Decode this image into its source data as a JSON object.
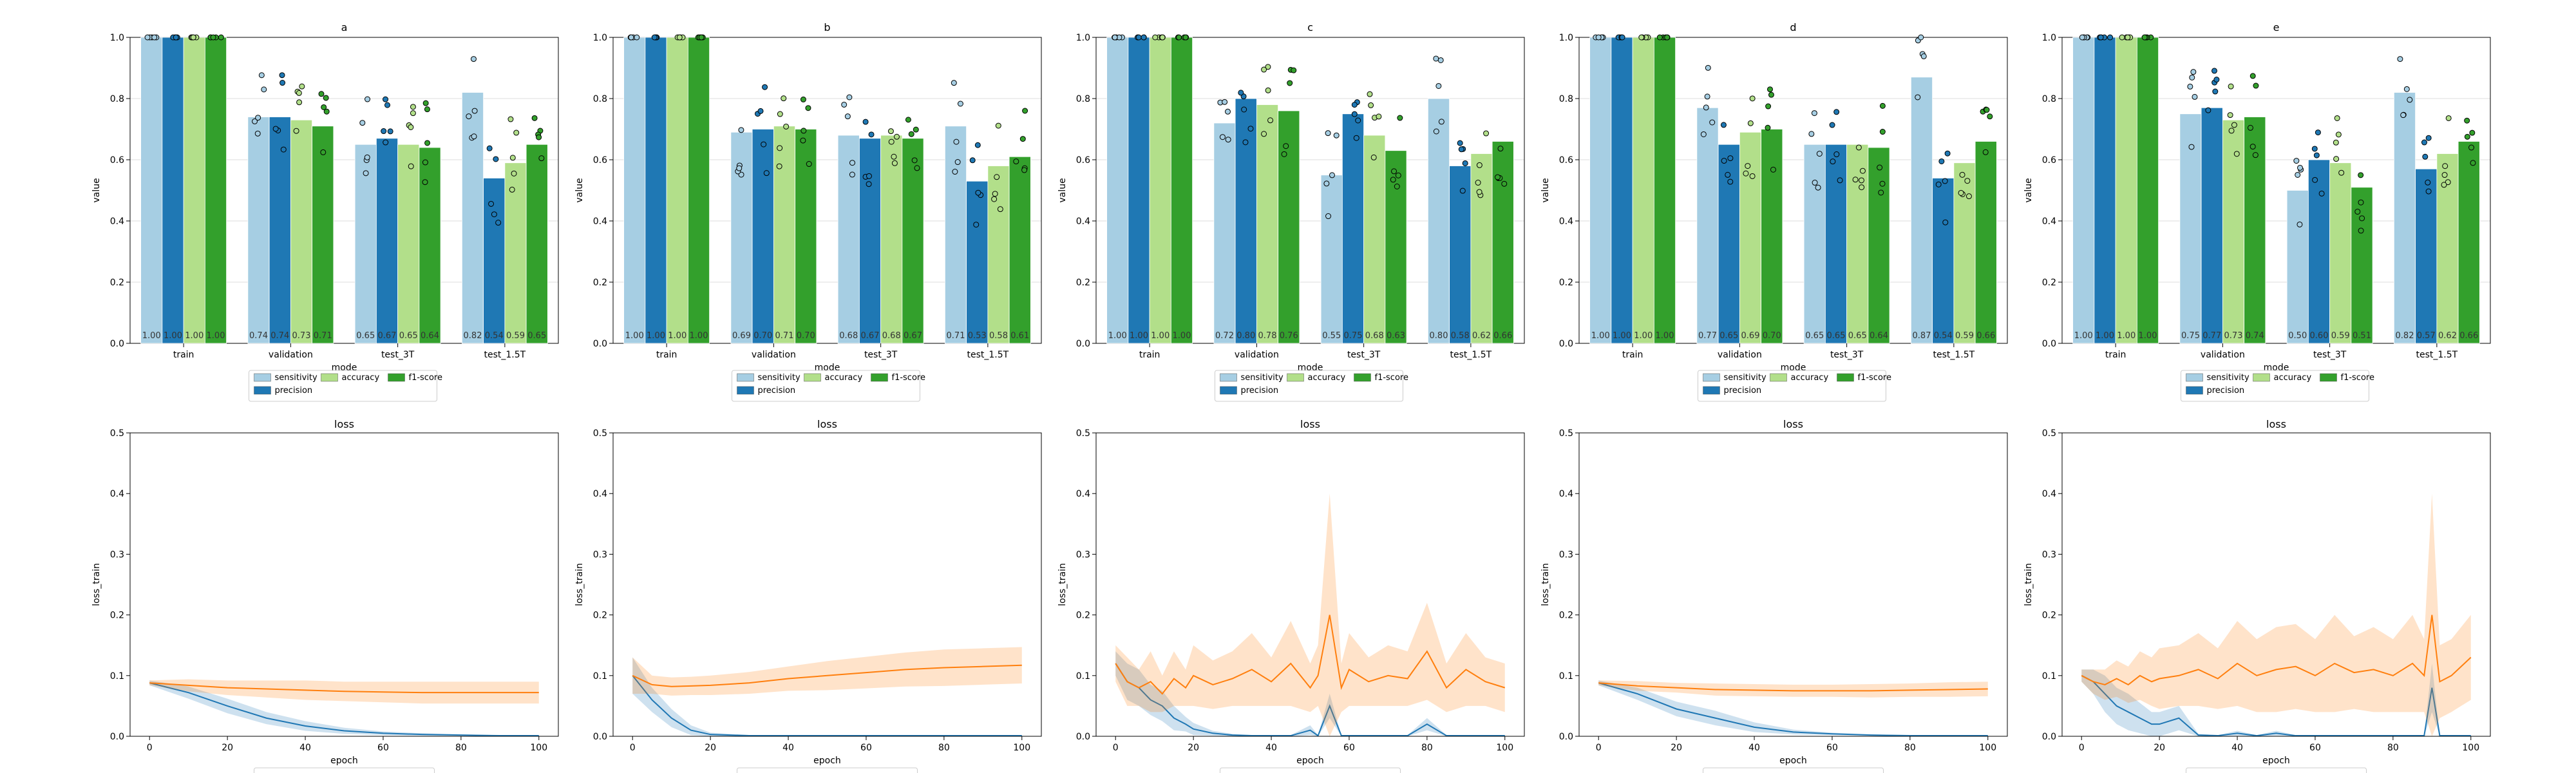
{
  "chart_data": [
    {
      "panel": "a",
      "type": "bar",
      "title": "a",
      "xlabel": "mode",
      "ylabel": "value",
      "ylim": [
        0,
        1.0
      ],
      "y_ticks": [
        "0.0",
        "0.2",
        "0.4",
        "0.6",
        "0.8",
        "1.0"
      ],
      "categories": [
        "train",
        "validation",
        "test_3T",
        "test_1.5T"
      ],
      "legend": [
        "sensitivity",
        "accuracy",
        "f1-score",
        "precision"
      ],
      "series": [
        {
          "name": "sensitivity",
          "values": [
            1.0,
            0.74,
            0.65,
            0.82
          ],
          "labels": [
            "1.00",
            "0.74",
            "0.65",
            "0.82"
          ]
        },
        {
          "name": "precision",
          "values": [
            1.0,
            0.74,
            0.67,
            0.54
          ],
          "labels": [
            "1.00",
            "0.74",
            "0.67",
            "0.54"
          ]
        },
        {
          "name": "accuracy",
          "values": [
            1.0,
            0.73,
            0.65,
            0.59
          ],
          "labels": [
            "1.00",
            "0.73",
            "0.65",
            "0.59"
          ]
        },
        {
          "name": "f1-score",
          "values": [
            1.0,
            0.71,
            0.64,
            0.65
          ],
          "labels": [
            "1.00",
            "0.71",
            "0.64",
            "0.65"
          ]
        }
      ]
    },
    {
      "panel": "b",
      "type": "bar",
      "title": "b",
      "xlabel": "mode",
      "ylabel": "value",
      "ylim": [
        0,
        1.0
      ],
      "y_ticks": [
        "0.0",
        "0.2",
        "0.4",
        "0.6",
        "0.8",
        "1.0"
      ],
      "categories": [
        "train",
        "validation",
        "test_3T",
        "test_1.5T"
      ],
      "legend": [
        "sensitivity",
        "accuracy",
        "f1-score",
        "precision"
      ],
      "series": [
        {
          "name": "sensitivity",
          "values": [
            1.0,
            0.69,
            0.68,
            0.71
          ],
          "labels": [
            "1.00",
            "0.69",
            "0.68",
            "0.71"
          ]
        },
        {
          "name": "precision",
          "values": [
            1.0,
            0.7,
            0.67,
            0.53
          ],
          "labels": [
            "1.00",
            "0.70",
            "0.67",
            "0.53"
          ]
        },
        {
          "name": "accuracy",
          "values": [
            1.0,
            0.71,
            0.68,
            0.58
          ],
          "labels": [
            "1.00",
            "0.71",
            "0.68",
            "0.58"
          ]
        },
        {
          "name": "f1-score",
          "values": [
            1.0,
            0.7,
            0.67,
            0.61
          ],
          "labels": [
            "1.00",
            "0.70",
            "0.67",
            "0.61"
          ]
        }
      ]
    },
    {
      "panel": "c",
      "type": "bar",
      "title": "c",
      "xlabel": "mode",
      "ylabel": "value",
      "ylim": [
        0,
        1.0
      ],
      "y_ticks": [
        "0.0",
        "0.2",
        "0.4",
        "0.6",
        "0.8",
        "1.0"
      ],
      "categories": [
        "train",
        "validation",
        "test_3T",
        "test_1.5T"
      ],
      "legend": [
        "sensitivity",
        "accuracy",
        "f1-score",
        "precision"
      ],
      "series": [
        {
          "name": "sensitivity",
          "values": [
            1.0,
            0.72,
            0.55,
            0.8
          ],
          "labels": [
            "1.00",
            "0.72",
            "0.55",
            "0.80"
          ]
        },
        {
          "name": "precision",
          "values": [
            1.0,
            0.8,
            0.75,
            0.58
          ],
          "labels": [
            "1.00",
            "0.80",
            "0.75",
            "0.58"
          ]
        },
        {
          "name": "accuracy",
          "values": [
            1.0,
            0.78,
            0.68,
            0.62
          ],
          "labels": [
            "1.00",
            "0.78",
            "0.68",
            "0.62"
          ]
        },
        {
          "name": "f1-score",
          "values": [
            1.0,
            0.76,
            0.63,
            0.66
          ],
          "labels": [
            "1.00",
            "0.76",
            "0.63",
            "0.66"
          ]
        }
      ]
    },
    {
      "panel": "d",
      "type": "bar",
      "title": "d",
      "xlabel": "mode",
      "ylabel": "value",
      "ylim": [
        0,
        1.0
      ],
      "y_ticks": [
        "0.0",
        "0.2",
        "0.4",
        "0.6",
        "0.8",
        "1.0"
      ],
      "categories": [
        "train",
        "validation",
        "test_3T",
        "test_1.5T"
      ],
      "legend": [
        "sensitivity",
        "accuracy",
        "f1-score",
        "precision"
      ],
      "series": [
        {
          "name": "sensitivity",
          "values": [
            1.0,
            0.77,
            0.65,
            0.87
          ],
          "labels": [
            "1.00",
            "0.77",
            "0.65",
            "0.87"
          ]
        },
        {
          "name": "precision",
          "values": [
            1.0,
            0.65,
            0.65,
            0.54
          ],
          "labels": [
            "1.00",
            "0.65",
            "0.65",
            "0.54"
          ]
        },
        {
          "name": "accuracy",
          "values": [
            1.0,
            0.69,
            0.65,
            0.59
          ],
          "labels": [
            "1.00",
            "0.69",
            "0.65",
            "0.59"
          ]
        },
        {
          "name": "f1-score",
          "values": [
            1.0,
            0.7,
            0.64,
            0.66
          ],
          "labels": [
            "1.00",
            "0.70",
            "0.64",
            "0.66"
          ]
        }
      ]
    },
    {
      "panel": "e",
      "type": "bar",
      "title": "e",
      "xlabel": "mode",
      "ylabel": "value",
      "ylim": [
        0,
        1.0
      ],
      "y_ticks": [
        "0.0",
        "0.2",
        "0.4",
        "0.6",
        "0.8",
        "1.0"
      ],
      "categories": [
        "train",
        "validation",
        "test_3T",
        "test_1.5T"
      ],
      "legend": [
        "sensitivity",
        "accuracy",
        "f1-score",
        "precision"
      ],
      "series": [
        {
          "name": "sensitivity",
          "values": [
            1.0,
            0.75,
            0.5,
            0.82
          ],
          "labels": [
            "1.00",
            "0.75",
            "0.50",
            "0.82"
          ]
        },
        {
          "name": "precision",
          "values": [
            1.0,
            0.77,
            0.6,
            0.57
          ],
          "labels": [
            "1.00",
            "0.77",
            "0.60",
            "0.57"
          ]
        },
        {
          "name": "accuracy",
          "values": [
            1.0,
            0.73,
            0.59,
            0.62
          ],
          "labels": [
            "1.00",
            "0.73",
            "0.59",
            "0.62"
          ]
        },
        {
          "name": "f1-score",
          "values": [
            1.0,
            0.74,
            0.51,
            0.66
          ],
          "labels": [
            "1.00",
            "0.74",
            "0.51",
            "0.66"
          ]
        }
      ]
    },
    {
      "panel": "a-loss",
      "type": "line",
      "title": "loss",
      "xlabel": "epoch",
      "ylabel": "loss_train",
      "xlim": [
        -5,
        105
      ],
      "ylim": [
        0,
        0.5
      ],
      "x_ticks": [
        "0",
        "20",
        "40",
        "60",
        "80",
        "100"
      ],
      "y_ticks": [
        "0.0",
        "0.1",
        "0.2",
        "0.3",
        "0.4",
        "0.5"
      ],
      "x": [
        0,
        10,
        20,
        30,
        40,
        50,
        60,
        70,
        80,
        90,
        100
      ],
      "series": [
        {
          "color": "#1f77b4",
          "values": [
            0.088,
            0.072,
            0.05,
            0.03,
            0.017,
            0.009,
            0.005,
            0.003,
            0.002,
            0.001,
            0.001
          ],
          "band": [
            0.004,
            0.01,
            0.012,
            0.01,
            0.008,
            0.005,
            0.003,
            0.002,
            0.001,
            0.001,
            0.001
          ]
        },
        {
          "color": "#ff7f0e",
          "values": [
            0.088,
            0.084,
            0.08,
            0.078,
            0.076,
            0.074,
            0.073,
            0.072,
            0.072,
            0.072,
            0.072
          ],
          "band": [
            0.004,
            0.01,
            0.012,
            0.014,
            0.016,
            0.016,
            0.017,
            0.018,
            0.018,
            0.018,
            0.018
          ]
        }
      ]
    },
    {
      "panel": "b-loss",
      "type": "line",
      "title": "loss",
      "xlabel": "epoch",
      "ylabel": "loss_train",
      "xlim": [
        -5,
        105
      ],
      "ylim": [
        0,
        0.5
      ],
      "x_ticks": [
        "0",
        "20",
        "40",
        "60",
        "80",
        "100"
      ],
      "y_ticks": [
        "0.0",
        "0.1",
        "0.2",
        "0.3",
        "0.4",
        "0.5"
      ],
      "x": [
        0,
        5,
        10,
        15,
        20,
        30,
        40,
        50,
        60,
        70,
        80,
        90,
        100
      ],
      "series": [
        {
          "color": "#1f77b4",
          "values": [
            0.1,
            0.06,
            0.03,
            0.01,
            0.003,
            0.001,
            0.001,
            0.001,
            0.001,
            0.001,
            0.001,
            0.001,
            0.001
          ],
          "band": [
            0.03,
            0.02,
            0.015,
            0.008,
            0.003,
            0.001,
            0.001,
            0.001,
            0.001,
            0.001,
            0.001,
            0.001,
            0.001
          ]
        },
        {
          "color": "#ff7f0e",
          "values": [
            0.1,
            0.085,
            0.082,
            0.083,
            0.084,
            0.088,
            0.095,
            0.1,
            0.105,
            0.11,
            0.113,
            0.115,
            0.117
          ],
          "band": [
            0.03,
            0.015,
            0.015,
            0.015,
            0.016,
            0.018,
            0.02,
            0.024,
            0.026,
            0.028,
            0.03,
            0.03,
            0.03
          ]
        }
      ]
    },
    {
      "panel": "c-loss",
      "type": "line",
      "title": "loss",
      "xlabel": "epoch",
      "ylabel": "loss_train",
      "xlim": [
        -5,
        105
      ],
      "ylim": [
        0,
        0.5
      ],
      "x_ticks": [
        "0",
        "20",
        "40",
        "60",
        "80",
        "100"
      ],
      "y_ticks": [
        "0.0",
        "0.1",
        "0.2",
        "0.3",
        "0.4",
        "0.5"
      ],
      "x": [
        0,
        3,
        6,
        9,
        12,
        15,
        18,
        20,
        25,
        30,
        35,
        40,
        45,
        50,
        52,
        55,
        58,
        60,
        65,
        70,
        75,
        80,
        85,
        90,
        95,
        100
      ],
      "series": [
        {
          "color": "#1f77b4",
          "values": [
            0.12,
            0.09,
            0.08,
            0.06,
            0.05,
            0.03,
            0.02,
            0.012,
            0.005,
            0.002,
            0.001,
            0.001,
            0.001,
            0.01,
            0.001,
            0.05,
            0.001,
            0.001,
            0.001,
            0.001,
            0.001,
            0.02,
            0.001,
            0.001,
            0.001,
            0.001
          ],
          "band": [
            0.02,
            0.03,
            0.03,
            0.025,
            0.025,
            0.02,
            0.012,
            0.01,
            0.004,
            0.002,
            0.001,
            0.001,
            0.001,
            0.008,
            0.001,
            0.02,
            0.001,
            0.001,
            0.001,
            0.001,
            0.001,
            0.01,
            0.001,
            0.001,
            0.001,
            0.001
          ]
        },
        {
          "color": "#ff7f0e",
          "values": [
            0.12,
            0.09,
            0.08,
            0.09,
            0.07,
            0.095,
            0.08,
            0.1,
            0.085,
            0.095,
            0.11,
            0.09,
            0.12,
            0.08,
            0.1,
            0.2,
            0.08,
            0.11,
            0.09,
            0.1,
            0.095,
            0.14,
            0.08,
            0.11,
            0.09,
            0.08
          ],
          "band": [
            0.03,
            0.04,
            0.03,
            0.05,
            0.03,
            0.045,
            0.03,
            0.05,
            0.04,
            0.045,
            0.06,
            0.04,
            0.07,
            0.04,
            0.05,
            0.2,
            0.04,
            0.06,
            0.04,
            0.05,
            0.045,
            0.08,
            0.04,
            0.06,
            0.04,
            0.04
          ]
        }
      ]
    },
    {
      "panel": "d-loss",
      "type": "line",
      "title": "loss",
      "xlabel": "epoch",
      "ylabel": "loss_train",
      "xlim": [
        -5,
        105
      ],
      "ylim": [
        0,
        0.5
      ],
      "x_ticks": [
        "0",
        "20",
        "40",
        "60",
        "80",
        "100"
      ],
      "y_ticks": [
        "0.0",
        "0.1",
        "0.2",
        "0.3",
        "0.4",
        "0.5"
      ],
      "x": [
        0,
        10,
        20,
        30,
        40,
        50,
        60,
        70,
        80,
        90,
        100
      ],
      "series": [
        {
          "color": "#1f77b4",
          "values": [
            0.088,
            0.07,
            0.045,
            0.03,
            0.015,
            0.007,
            0.004,
            0.002,
            0.001,
            0.001,
            0.001
          ],
          "band": [
            0.004,
            0.01,
            0.012,
            0.012,
            0.008,
            0.004,
            0.002,
            0.001,
            0.001,
            0.001,
            0.001
          ]
        },
        {
          "color": "#ff7f0e",
          "values": [
            0.088,
            0.083,
            0.08,
            0.077,
            0.076,
            0.075,
            0.075,
            0.075,
            0.076,
            0.077,
            0.078
          ],
          "band": [
            0.004,
            0.008,
            0.008,
            0.01,
            0.01,
            0.01,
            0.01,
            0.011,
            0.011,
            0.012,
            0.012
          ]
        }
      ]
    },
    {
      "panel": "e-loss",
      "type": "line",
      "title": "loss",
      "xlabel": "epoch",
      "ylabel": "loss_train",
      "xlim": [
        -5,
        105
      ],
      "ylim": [
        0,
        0.5
      ],
      "x_ticks": [
        "0",
        "20",
        "40",
        "60",
        "80",
        "100"
      ],
      "y_ticks": [
        "0.0",
        "0.1",
        "0.2",
        "0.3",
        "0.4",
        "0.5"
      ],
      "x": [
        0,
        3,
        6,
        9,
        12,
        15,
        18,
        20,
        25,
        30,
        35,
        40,
        45,
        50,
        55,
        60,
        65,
        70,
        75,
        80,
        85,
        88,
        90,
        92,
        95,
        100
      ],
      "series": [
        {
          "color": "#1f77b4",
          "values": [
            0.1,
            0.09,
            0.07,
            0.05,
            0.04,
            0.03,
            0.02,
            0.02,
            0.03,
            0.002,
            0.001,
            0.005,
            0.001,
            0.005,
            0.001,
            0.001,
            0.001,
            0.001,
            0.001,
            0.001,
            0.001,
            0.001,
            0.08,
            0.001,
            0.001,
            0.001
          ],
          "band": [
            0.01,
            0.02,
            0.03,
            0.03,
            0.03,
            0.025,
            0.02,
            0.02,
            0.02,
            0.002,
            0.001,
            0.004,
            0.001,
            0.004,
            0.001,
            0.001,
            0.001,
            0.001,
            0.001,
            0.001,
            0.001,
            0.001,
            0.04,
            0.001,
            0.001,
            0.001
          ]
        },
        {
          "color": "#ff7f0e",
          "values": [
            0.1,
            0.09,
            0.085,
            0.095,
            0.085,
            0.1,
            0.09,
            0.095,
            0.1,
            0.11,
            0.095,
            0.12,
            0.1,
            0.11,
            0.115,
            0.1,
            0.12,
            0.105,
            0.11,
            0.1,
            0.12,
            0.1,
            0.2,
            0.09,
            0.1,
            0.13
          ],
          "band": [
            0.01,
            0.02,
            0.025,
            0.03,
            0.03,
            0.04,
            0.04,
            0.05,
            0.05,
            0.06,
            0.05,
            0.07,
            0.06,
            0.07,
            0.07,
            0.06,
            0.08,
            0.06,
            0.07,
            0.06,
            0.08,
            0.06,
            0.2,
            0.06,
            0.06,
            0.07
          ]
        }
      ]
    }
  ]
}
